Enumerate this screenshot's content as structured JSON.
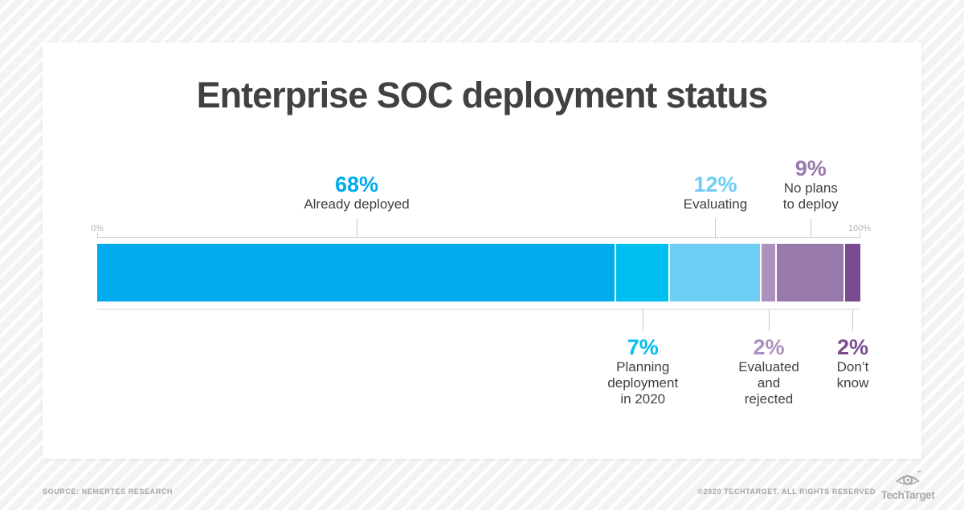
{
  "page": {
    "title": "Enterprise SOC deployment status",
    "source": "SOURCE: NEMERTES RESEARCH",
    "copyright": "©2020 TECHTARGET. ALL RIGHTS RESERVED",
    "brand": "TechTarget"
  },
  "chart_data": {
    "type": "bar",
    "subtype": "horizontal-stacked-100-percent",
    "title": "Enterprise SOC deployment status",
    "total": 100,
    "grid": false,
    "axis": {
      "min_label": "0%",
      "max_label": "100%"
    },
    "segments": [
      {
        "id": "already-deployed",
        "label": "Already deployed",
        "pct_label": "68%",
        "value": 68,
        "color": "#00ACEC",
        "label_position": "above",
        "label_lines": [
          "Already deployed"
        ]
      },
      {
        "id": "planning-deployment-in-2020",
        "label": "Planning deployment in 2020",
        "pct_label": "7%",
        "value": 7,
        "color": "#00BEF0",
        "label_position": "below",
        "label_lines": [
          "Planning",
          "deployment",
          "in 2020"
        ]
      },
      {
        "id": "evaluating",
        "label": "Evaluating",
        "pct_label": "12%",
        "value": 12,
        "color": "#6DCDF5",
        "label_position": "above",
        "label_lines": [
          "Evaluating"
        ]
      },
      {
        "id": "evaluated-and-rejected",
        "label": "Evaluated and rejected",
        "pct_label": "2%",
        "value": 2,
        "color": "#AB92BE",
        "label_position": "below",
        "label_lines": [
          "Evaluated",
          "and",
          "rejected"
        ]
      },
      {
        "id": "no-plans-to-deploy",
        "label": "No plans to deploy",
        "pct_label": "9%",
        "value": 9,
        "color": "#9879AC",
        "label_position": "above",
        "label_lines": [
          "No plans",
          "to deploy"
        ]
      },
      {
        "id": "dont-know",
        "label": "Don’t know",
        "pct_label": "2%",
        "value": 2,
        "color": "#7A4C8F",
        "label_position": "below",
        "label_lines": [
          "Don’t",
          "know"
        ]
      }
    ]
  }
}
